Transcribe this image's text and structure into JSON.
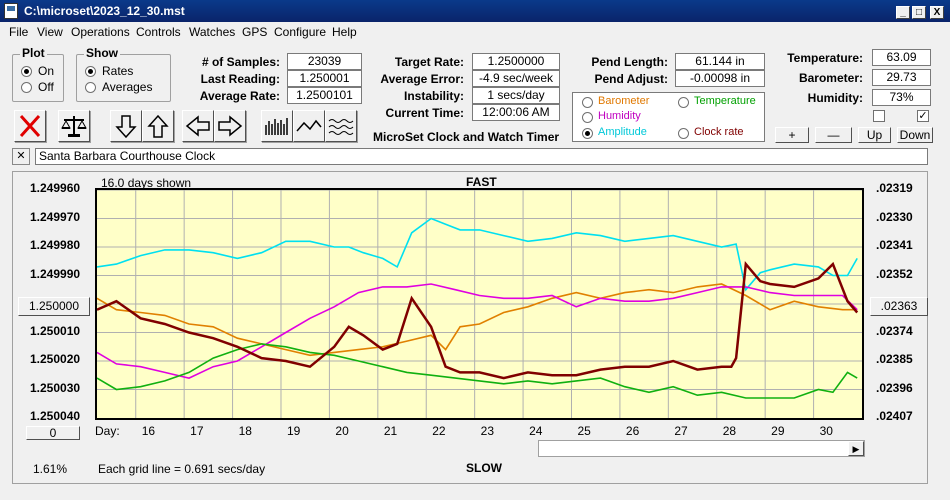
{
  "window": {
    "title": "C:\\microset\\2023_12_30.mst",
    "min": "_",
    "max": "□",
    "close": "X"
  },
  "menu": [
    "File",
    "View",
    "Operations",
    "Controls",
    "Watches",
    "GPS",
    "Configure",
    "Help"
  ],
  "plot_group": {
    "title": "Plot",
    "on": "On",
    "off": "Off",
    "selected": "On"
  },
  "show_group": {
    "title": "Show",
    "rates": "Rates",
    "averages": "Averages",
    "selected": "Rates"
  },
  "stats": {
    "samples_label": "# of Samples:",
    "samples": "23039",
    "last_label": "Last Reading:",
    "last": "1.250001",
    "avg_label": "Average Rate:",
    "avg": "1.2500101",
    "target_label": "Target Rate:",
    "target": "1.2500000",
    "err_label": "Average Error:",
    "err": "-4.9 sec/week",
    "inst_label": "Instability:",
    "inst": "1 secs/day",
    "time_label": "Current Time:",
    "time": "12:00:06 AM",
    "pendlen_label": "Pend Length:",
    "pendlen": "61.144 in",
    "pendadj_label": "Pend Adjust:",
    "pendadj": "-0.00098 in",
    "temp_label": "Temperature:",
    "temp": "63.09",
    "baro_label": "Barometer:",
    "baro": "29.73",
    "hum_label": "Humidity:",
    "hum": "73%"
  },
  "app_caption": "MicroSet Clock and Watch Timer",
  "series_select": {
    "barometer": "Barometer",
    "temperature": "Temperature",
    "humidity": "Humidity",
    "amplitude": "Amplitude",
    "clock_rate": "Clock rate",
    "selected": "Amplitude",
    "colors": {
      "barometer": "#e07800",
      "temperature": "#00a000",
      "humidity": "#c000c0",
      "amplitude": "#00c8d8",
      "clock_rate": "#800000"
    }
  },
  "sensor_buttons": {
    "plus": "+",
    "minus": "—",
    "up": "Up",
    "down": "Down",
    "check1": "",
    "check2": "✓"
  },
  "clock_name": "Santa Barbara Courthouse Clock",
  "chart_header": {
    "days_shown": "16.0 days shown",
    "fast": "FAST",
    "slow": "SLOW",
    "grid": "Each grid line = 0.691 secs/day",
    "pct": "1.61%",
    "day_label": "Day:",
    "left_button": "1.250000",
    "right_button": ".02363",
    "zero_button": "0"
  },
  "chart_data": {
    "type": "line",
    "y_left_ticks": [
      "1.249960",
      "1.249970",
      "1.249980",
      "1.249990",
      "1.250000",
      "1.250010",
      "1.250020",
      "1.250030",
      "1.250040"
    ],
    "y_right_ticks": [
      ".02319",
      ".02330",
      ".02341",
      ".02352",
      ".02363",
      ".02374",
      ".02385",
      ".02396",
      ".02407"
    ],
    "x_ticks": [
      "16",
      "17",
      "18",
      "19",
      "20",
      "21",
      "22",
      "23",
      "24",
      "25",
      "26",
      "27",
      "28",
      "29",
      "30"
    ],
    "xlim": [
      15.1,
      30.9
    ],
    "series": [
      {
        "color": "#00e0f0",
        "x": [
          15.1,
          15.5,
          16,
          16.5,
          17,
          17.5,
          18,
          18.5,
          19,
          19.5,
          20,
          20.3,
          20.6,
          21,
          21.3,
          21.6,
          22,
          22.3,
          22.6,
          23,
          23.5,
          24,
          24.5,
          25,
          25.5,
          26,
          26.5,
          27,
          27.5,
          28,
          28.3,
          28.5,
          28.8,
          29,
          29.5,
          30,
          30.3,
          30.6,
          30.8
        ],
        "y": [
          1.249987,
          1.249986,
          1.249983,
          1.249981,
          1.249981,
          1.249982,
          1.249984,
          1.249982,
          1.249978,
          1.249978,
          1.24998,
          1.24998,
          1.249982,
          1.249984,
          1.249987,
          1.249975,
          1.24997,
          1.249972,
          1.249974,
          1.249974,
          1.249976,
          1.249978,
          1.249977,
          1.249975,
          1.249976,
          1.249978,
          1.249977,
          1.249976,
          1.249978,
          1.24998,
          1.249979,
          1.249995,
          1.249989,
          1.249988,
          1.249986,
          1.249987,
          1.24999,
          1.24999,
          1.249984
        ]
      },
      {
        "color": "#e08000",
        "x": [
          15.1,
          15.5,
          16,
          16.5,
          17,
          17.5,
          18,
          18.5,
          19,
          19.5,
          20,
          20.5,
          21,
          21.5,
          22,
          22.3,
          22.6,
          23,
          23.5,
          24,
          24.5,
          25,
          25.5,
          26,
          26.5,
          27,
          27.5,
          28,
          28.5,
          29,
          29.5,
          30,
          30.5,
          30.8
        ],
        "y": [
          1.249998,
          1.250002,
          1.250003,
          1.250004,
          1.250007,
          1.250008,
          1.250012,
          1.250014,
          1.250016,
          1.250018,
          1.250017,
          1.250016,
          1.250015,
          1.250013,
          1.250011,
          1.250016,
          1.250008,
          1.250007,
          1.250003,
          1.250001,
          1.249998,
          1.249996,
          1.249998,
          1.249996,
          1.249995,
          1.249996,
          1.249994,
          1.249993,
          1.249997,
          1.250002,
          1.249999,
          1.250001,
          1.250002,
          1.250002
        ]
      },
      {
        "color": "#e000e0",
        "x": [
          15.1,
          15.5,
          16,
          16.5,
          17,
          17.5,
          18,
          18.5,
          19,
          19.5,
          20,
          20.5,
          21,
          21.5,
          22,
          22.5,
          23,
          23.5,
          24,
          24.5,
          25,
          25.5,
          26,
          26.5,
          27,
          27.5,
          28,
          28.5,
          29,
          29.5,
          30,
          30.5,
          30.8
        ],
        "y": [
          1.250017,
          1.250021,
          1.250022,
          1.250024,
          1.250026,
          1.250022,
          1.25002,
          1.250015,
          1.25001,
          1.250005,
          1.250001,
          1.249996,
          1.249994,
          1.249994,
          1.249993,
          1.249995,
          1.249997,
          1.249998,
          1.249998,
          1.249997,
          1.250001,
          1.249998,
          1.249999,
          1.249999,
          1.249998,
          1.249996,
          1.249994,
          1.249994,
          1.249996,
          1.249997,
          1.249997,
          1.249997,
          1.250002
        ]
      },
      {
        "color": "#10b010",
        "x": [
          15.1,
          15.5,
          16,
          16.5,
          17,
          17.5,
          18,
          18.5,
          19,
          19.5,
          20,
          20.5,
          21,
          21.5,
          22,
          22.5,
          23,
          23.5,
          24,
          24.5,
          25,
          25.5,
          26,
          26.5,
          27,
          27.5,
          28,
          28.5,
          29,
          29.5,
          30,
          30.3,
          30.6,
          30.8
        ],
        "y": [
          1.250026,
          1.25003,
          1.250029,
          1.250027,
          1.250024,
          1.250019,
          1.250016,
          1.250014,
          1.250015,
          1.250017,
          1.250018,
          1.25002,
          1.250022,
          1.250024,
          1.250025,
          1.250026,
          1.250027,
          1.250028,
          1.250027,
          1.250028,
          1.250027,
          1.250026,
          1.250029,
          1.250031,
          1.250029,
          1.250032,
          1.250031,
          1.250033,
          1.250033,
          1.250033,
          1.25003,
          1.250031,
          1.250024,
          1.250026
        ]
      },
      {
        "color": "#800000",
        "x": [
          15.1,
          15.5,
          16,
          16.5,
          17,
          17.5,
          18,
          18.5,
          19,
          19.5,
          20,
          20.3,
          20.6,
          21,
          21.3,
          21.6,
          22,
          22.3,
          22.6,
          23,
          23.5,
          24,
          24.5,
          25,
          25.5,
          26,
          26.5,
          27,
          27.5,
          28,
          28.2,
          28.3,
          28.5,
          28.8,
          29,
          29.5,
          30,
          30.3,
          30.6,
          30.8
        ],
        "y": [
          1.250002,
          1.249999,
          1.250005,
          1.250007,
          1.25001,
          1.250012,
          1.250015,
          1.250019,
          1.25002,
          1.250022,
          1.250015,
          1.250008,
          1.250011,
          1.250016,
          1.250014,
          1.249998,
          1.250008,
          1.250022,
          1.250024,
          1.250024,
          1.250026,
          1.250024,
          1.250025,
          1.250025,
          1.250023,
          1.250022,
          1.250022,
          1.25002,
          1.250023,
          1.250022,
          1.250022,
          1.250019,
          1.249986,
          1.249992,
          1.249993,
          1.249994,
          1.249991,
          1.249986,
          1.249999,
          1.250003
        ]
      }
    ]
  }
}
